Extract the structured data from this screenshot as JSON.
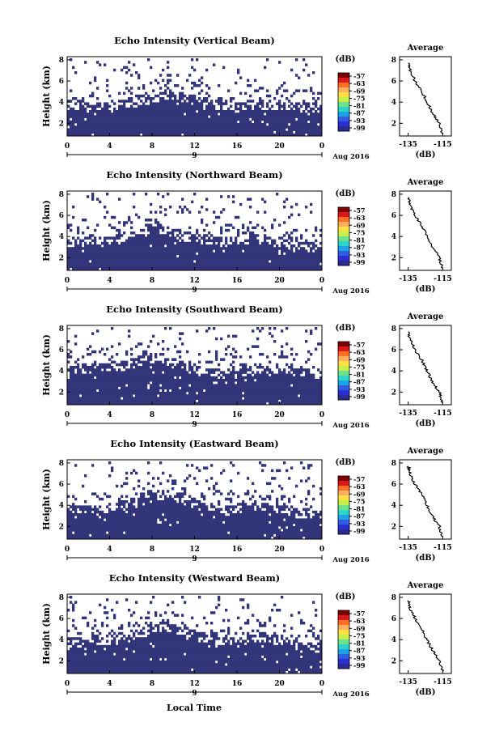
{
  "chart_data": {
    "type": "heatmap",
    "shared": {
      "xlabel": "Local Time",
      "ylabel": "Height (km)",
      "x_ticks": [
        "0",
        "4",
        "8",
        "12",
        "16",
        "20",
        "0"
      ],
      "y_ticks": [
        "2",
        "4",
        "6",
        "8"
      ],
      "date_tick": "9",
      "date_label": "Aug 2016",
      "colorbar_unit": "(dB)",
      "colorbar_ticks": [
        "-57",
        "-63",
        "-69",
        "-75",
        "-81",
        "-87",
        "-93",
        "-99"
      ],
      "colors": {
        "fill": "#33357a",
        "background": "#ffffff"
      },
      "colorbar_colors": [
        "#7f0000",
        "#d7191c",
        "#fd6f25",
        "#fdae61",
        "#ffe045",
        "#c8f04a",
        "#6fe08c",
        "#2dd4c8",
        "#1fa3e8",
        "#2f5fe0",
        "#2a2fd1",
        "#2b2b8f"
      ],
      "profile": {
        "title": "Average",
        "xlabel": "(dB)",
        "x_ticks": [
          "-135",
          "-115"
        ],
        "y_ticks": [
          "2",
          "4",
          "6",
          "8"
        ]
      }
    },
    "panels": [
      {
        "title": "Echo Intensity (Vertical Beam)",
        "x_hours": [
          0,
          24
        ],
        "ylim_km": [
          0.8,
          8.3
        ],
        "top_fill_km": [
          3.6,
          3.5,
          3.4,
          3.5,
          3.3,
          3.6,
          3.8,
          4.0,
          4.2,
          4.5,
          4.6,
          4.3,
          4.1,
          3.8,
          3.6,
          3.5,
          3.4,
          3.6,
          3.7,
          3.5,
          3.6,
          3.5,
          3.4,
          3.3,
          3.2
        ],
        "profile_db": [
          [
            -115,
            1.0
          ],
          [
            -117,
            2.0
          ],
          [
            -121,
            3.0
          ],
          [
            -124,
            4.0
          ],
          [
            -127,
            5.0
          ],
          [
            -131,
            6.0
          ],
          [
            -134,
            7.0
          ],
          [
            -135,
            7.7
          ]
        ]
      },
      {
        "title": "Echo Intensity (Northward Beam)",
        "x_hours": [
          0,
          24
        ],
        "ylim_km": [
          0.8,
          8.3
        ],
        "top_fill_km": [
          3.4,
          3.3,
          3.4,
          3.5,
          3.4,
          3.6,
          3.9,
          4.1,
          4.8,
          4.6,
          4.0,
          3.8,
          3.6,
          3.5,
          3.4,
          3.4,
          3.5,
          3.6,
          3.7,
          3.5,
          3.3,
          3.1,
          3.0,
          3.0,
          2.9
        ],
        "profile_db": [
          [
            -115,
            1.0
          ],
          [
            -117,
            2.0
          ],
          [
            -121,
            3.0
          ],
          [
            -124,
            4.0
          ],
          [
            -127,
            5.0
          ],
          [
            -131,
            6.0
          ],
          [
            -134,
            7.0
          ],
          [
            -135,
            7.7
          ]
        ]
      },
      {
        "title": "Echo Intensity (Southward Beam)",
        "x_hours": [
          0,
          24
        ],
        "ylim_km": [
          0.8,
          8.3
        ],
        "top_fill_km": [
          3.9,
          4.0,
          4.1,
          4.3,
          4.2,
          4.3,
          4.5,
          4.9,
          5.1,
          5.0,
          4.6,
          4.3,
          4.0,
          3.8,
          3.6,
          3.5,
          3.6,
          3.8,
          3.9,
          4.0,
          4.1,
          3.9,
          3.7,
          3.6,
          3.5
        ],
        "profile_db": [
          [
            -115,
            1.0
          ],
          [
            -117,
            2.0
          ],
          [
            -121,
            3.0
          ],
          [
            -124,
            4.0
          ],
          [
            -127,
            5.0
          ],
          [
            -131,
            6.0
          ],
          [
            -134,
            7.0
          ],
          [
            -135,
            7.7
          ]
        ]
      },
      {
        "title": "Echo Intensity (Eastward Beam)",
        "x_hours": [
          0,
          24
        ],
        "ylim_km": [
          0.8,
          8.3
        ],
        "top_fill_km": [
          3.5,
          3.4,
          3.3,
          3.4,
          3.6,
          3.8,
          4.0,
          4.3,
          4.6,
          4.9,
          4.7,
          4.4,
          4.0,
          3.7,
          3.5,
          3.4,
          3.5,
          3.7,
          3.8,
          3.6,
          3.4,
          3.2,
          3.1,
          3.0,
          3.0
        ],
        "profile_db": [
          [
            -115,
            1.0
          ],
          [
            -117,
            2.0
          ],
          [
            -121,
            3.0
          ],
          [
            -124,
            4.0
          ],
          [
            -127,
            5.0
          ],
          [
            -131,
            6.0
          ],
          [
            -134,
            7.0
          ],
          [
            -135,
            7.7
          ]
        ]
      },
      {
        "title": "Echo Intensity (Westward Beam)",
        "x_hours": [
          0,
          24
        ],
        "ylim_km": [
          0.8,
          8.3
        ],
        "top_fill_km": [
          3.5,
          3.6,
          3.8,
          3.9,
          3.7,
          3.8,
          4.1,
          4.5,
          4.9,
          5.2,
          5.0,
          4.6,
          4.3,
          4.0,
          3.8,
          3.6,
          3.6,
          3.9,
          4.1,
          4.0,
          3.7,
          3.5,
          3.3,
          3.2,
          3.1
        ],
        "profile_db": [
          [
            -115,
            1.0
          ],
          [
            -117,
            2.0
          ],
          [
            -121,
            3.0
          ],
          [
            -124,
            4.0
          ],
          [
            -127,
            5.0
          ],
          [
            -131,
            6.0
          ],
          [
            -134,
            7.0
          ],
          [
            -135,
            7.7
          ]
        ]
      }
    ]
  }
}
